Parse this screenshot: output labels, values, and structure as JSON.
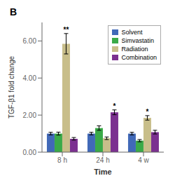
{
  "chart_data": {
    "type": "bar",
    "title": "B",
    "xlabel": "Time",
    "ylabel": "TGF-β1 fold change",
    "categories": [
      "8 h",
      "24 h",
      "4 w"
    ],
    "series": [
      {
        "name": "Solvent",
        "color": "#4169B8",
        "values": [
          1.0,
          1.0,
          1.0
        ],
        "errors": [
          0.07,
          0.07,
          0.07
        ],
        "significance": [
          null,
          null,
          null
        ]
      },
      {
        "name": "Simvastatin",
        "color": "#3AAA48",
        "values": [
          1.0,
          1.3,
          0.62
        ],
        "errors": [
          0.08,
          0.12,
          0.06
        ],
        "significance": [
          null,
          null,
          null
        ]
      },
      {
        "name": "Radiation",
        "color": "#C8BE8A",
        "values": [
          5.85,
          0.75,
          1.85
        ],
        "errors": [
          0.55,
          0.07,
          0.12
        ],
        "significance": [
          "**",
          null,
          "*"
        ]
      },
      {
        "name": "Combination",
        "color": "#7B3090",
        "values": [
          0.72,
          2.15,
          1.08
        ],
        "errors": [
          0.07,
          0.13,
          0.1
        ],
        "significance": [
          null,
          "*",
          null
        ]
      }
    ],
    "ylim": [
      0.0,
      7.0
    ],
    "yticks": [
      {
        "value": 0.0,
        "label": "0.00"
      },
      {
        "value": 2.0,
        "label": "2.00"
      },
      {
        "value": 4.0,
        "label": "4.00"
      },
      {
        "value": 6.0,
        "label": "6.00"
      }
    ],
    "legend": "upper right",
    "grid": false
  }
}
